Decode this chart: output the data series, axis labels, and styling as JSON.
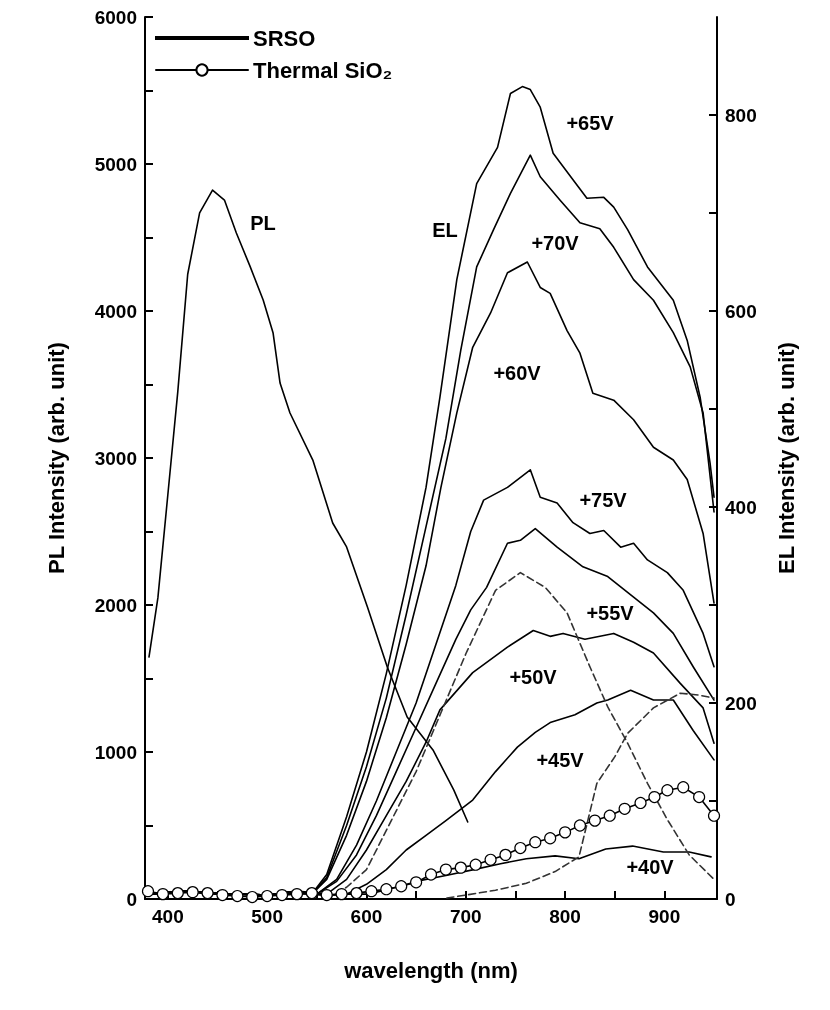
{
  "chart_data": {
    "type": "line",
    "xlabel": "wavelength (nm)",
    "ylabel": "PL Intensity (arb. unit)",
    "y2label": "EL Intensity (arb. unit)",
    "xlim": [
      377,
      953
    ],
    "xticks": [
      400,
      {
        "value": 450,
        "label": null
      },
      500,
      {
        "value": 550,
        "label": null
      },
      600,
      {
        "value": 650,
        "label": null
      },
      700,
      {
        "value": 750,
        "label": null
      },
      800,
      {
        "value": 850,
        "label": null
      },
      900
    ],
    "ylim": [
      0,
      6000
    ],
    "yticks": [
      0,
      {
        "value": 500,
        "label": null
      },
      1000,
      {
        "value": 1500,
        "label": null
      },
      2000,
      {
        "value": 2500,
        "label": null
      },
      3000,
      {
        "value": 3500,
        "label": null
      },
      4000,
      {
        "value": 4500,
        "label": null
      },
      5000,
      {
        "value": 5500,
        "label": null
      },
      6000
    ],
    "y2lim": [
      0,
      900
    ],
    "y2ticks": [
      0,
      {
        "value": 100,
        "label": null
      },
      200,
      {
        "value": 300,
        "label": null
      },
      400,
      {
        "value": 500,
        "label": null
      },
      600,
      {
        "value": 700,
        "label": null
      },
      800
    ],
    "legend": "top left",
    "annotations": [
      "PL",
      "EL"
    ],
    "series": [
      {
        "name": "SRSO",
        "color": "#000000",
        "marker": "none",
        "line_style": "solid",
        "x": [
          381,
          390,
          400,
          410,
          420,
          432,
          445,
          457,
          469,
          483,
          496,
          506,
          513,
          523,
          546,
          566,
          580,
          601,
          621,
          641,
          667,
          688,
          702
        ],
        "values": [
          1646,
          2050,
          2750,
          3450,
          4250,
          4667,
          4823,
          4755,
          4531,
          4300,
          4075,
          3850,
          3510,
          3306,
          2986,
          2558,
          2395,
          1986,
          1578,
          1238,
          1014,
          741,
          524
        ]
      },
      {
        "name": "+65V",
        "color": "#000000",
        "marker": "none",
        "line_style": "solid",
        "axis": "y2",
        "x": [
          380,
          420,
          440,
          500,
          530,
          545,
          560,
          580,
          600,
          620,
          640,
          660,
          674,
          691,
          711,
          732,
          745,
          757,
          765,
          775,
          788,
          808,
          822,
          839,
          849,
          863,
          883,
          909,
          923,
          936,
          946,
          950
        ],
        "values": [
          5,
          8,
          6,
          4,
          8,
          5,
          25,
          84,
          150,
          230,
          320,
          420,
          512,
          632,
          730,
          767,
          822,
          829,
          826,
          808,
          761,
          734,
          715,
          716,
          706,
          683,
          645,
          611,
          570,
          512,
          445,
          410
        ]
      },
      {
        "name": "+70V",
        "color": "#000000",
        "marker": "none",
        "line_style": "solid",
        "axis": "y2",
        "x": [
          380,
          420,
          440,
          500,
          530,
          545,
          560,
          580,
          600,
          620,
          640,
          660,
          680,
          695,
          711,
          728,
          745,
          765,
          775,
          795,
          815,
          835,
          849,
          869,
          889,
          909,
          926,
          939,
          950
        ],
        "values": [
          5,
          8,
          6,
          4,
          8,
          5,
          22,
          75,
          135,
          205,
          290,
          380,
          470,
          560,
          645,
          683,
          720,
          759,
          737,
          713,
          690,
          684,
          665,
          632,
          611,
          578,
          543,
          496,
          395
        ]
      },
      {
        "name": "+60V",
        "color": "#000000",
        "marker": "none",
        "line_style": "solid",
        "axis": "y2",
        "x": [
          380,
          420,
          440,
          500,
          530,
          545,
          560,
          580,
          600,
          620,
          640,
          660,
          675,
          691,
          707,
          725,
          742,
          762,
          775,
          785,
          802,
          815,
          828,
          849,
          869,
          889,
          909,
          923,
          939,
          950
        ],
        "values": [
          5,
          8,
          6,
          4,
          8,
          5,
          20,
          65,
          120,
          185,
          260,
          340,
          420,
          496,
          563,
          598,
          639,
          650,
          624,
          618,
          580,
          557,
          516,
          509,
          489,
          461,
          448,
          428,
          373,
          302
        ]
      },
      {
        "name": "+75V",
        "color": "#000000",
        "marker": "none",
        "line_style": "solid",
        "axis": "y2",
        "x": [
          380,
          420,
          440,
          500,
          530,
          550,
          570,
          590,
          610,
          630,
          650,
          670,
          690,
          705,
          718,
          742,
          765,
          775,
          792,
          808,
          825,
          839,
          856,
          869,
          883,
          903,
          919,
          939,
          950
        ],
        "values": [
          5,
          8,
          6,
          4,
          8,
          5,
          20,
          55,
          100,
          150,
          200,
          260,
          320,
          375,
          407,
          420,
          438,
          410,
          404,
          384,
          373,
          376,
          359,
          363,
          346,
          333,
          315,
          271,
          237
        ]
      },
      {
        "name": "+55V",
        "color": "#000000",
        "marker": "none",
        "line_style": "solid",
        "axis": "y2",
        "x": [
          380,
          420,
          440,
          500,
          530,
          550,
          570,
          590,
          610,
          630,
          650,
          670,
          690,
          705,
          721,
          742,
          755,
          770,
          792,
          818,
          843,
          869,
          889,
          909,
          929,
          950
        ],
        "values": [
          5,
          8,
          6,
          4,
          8,
          5,
          18,
          45,
          85,
          130,
          175,
          220,
          265,
          295,
          318,
          363,
          366,
          378,
          359,
          339,
          329,
          308,
          292,
          271,
          237,
          203
        ]
      },
      {
        "name": "+50V",
        "color": "#000000",
        "marker": "none",
        "line_style": "solid",
        "axis": "y2",
        "x": [
          380,
          420,
          440,
          500,
          530,
          560,
          580,
          600,
          620,
          640,
          660,
          674,
          707,
          742,
          768,
          785,
          798,
          820,
          849,
          869,
          889,
          916,
          939,
          950
        ],
        "values": [
          5,
          8,
          6,
          4,
          8,
          5,
          20,
          50,
          85,
          120,
          160,
          193,
          231,
          257,
          274,
          268,
          271,
          265,
          271,
          262,
          251,
          220,
          195,
          159
        ]
      },
      {
        "name": "+45V",
        "color": "#000000",
        "marker": "none",
        "line_style": "solid",
        "axis": "y2",
        "x": [
          380,
          420,
          440,
          500,
          530,
          560,
          580,
          600,
          620,
          640,
          660,
          680,
          707,
          730,
          752,
          770,
          785,
          810,
          832,
          843,
          866,
          889,
          909,
          929,
          950
        ],
        "values": [
          5,
          8,
          6,
          4,
          6,
          4,
          5,
          15,
          30,
          50,
          65,
          80,
          101,
          130,
          155,
          170,
          180,
          188,
          200,
          203,
          213,
          203,
          203,
          172,
          142
        ]
      },
      {
        "name": "+40V",
        "color": "#000000",
        "marker": "none",
        "line_style": "solid",
        "axis": "y2",
        "x": [
          380,
          420,
          440,
          500,
          530,
          560,
          580,
          602,
          630,
          655,
          680,
          708,
          735,
          761,
          790,
          814,
          841,
          868,
          899,
          925,
          947
        ],
        "values": [
          5,
          8,
          6,
          4,
          6,
          4,
          5,
          5,
          12,
          19,
          24,
          30,
          36,
          41,
          44,
          41,
          51,
          54,
          48,
          48,
          43
        ]
      },
      {
        "color": "#333333",
        "marker": "none",
        "line_style": "dashed",
        "axis": "y2",
        "x": [
          560,
          580,
          600,
          625,
          650,
          675,
          700,
          730,
          755,
          780,
          802,
          825,
          843,
          863,
          883,
          903,
          925,
          950
        ],
        "values": [
          0,
          12,
          30,
          80,
          130,
          190,
          250,
          315,
          333,
          318,
          292,
          237,
          196,
          159,
          118,
          81,
          45,
          20
        ]
      },
      {
        "color": "#333333",
        "marker": "none",
        "line_style": "dashed",
        "axis": "y2",
        "x": [
          681,
          700,
          730,
          761,
          790,
          814,
          832,
          850,
          863,
          889,
          916,
          935,
          950
        ],
        "values": [
          1,
          4,
          9,
          16,
          28,
          43,
          118,
          145,
          169,
          195,
          210,
          208,
          205
        ]
      },
      {
        "name": "Thermal SiO₂",
        "color": "#000000",
        "marker": "circle",
        "line_style": "solid",
        "axis": "y2",
        "x": [
          380,
          395,
          410,
          425,
          440,
          455,
          470,
          485,
          500,
          515,
          530,
          545,
          560,
          575,
          590,
          605,
          620,
          635,
          650,
          665,
          680,
          695,
          710,
          725,
          740,
          755,
          770,
          785,
          800,
          815,
          830,
          845,
          860,
          876,
          890,
          903,
          919,
          935,
          950
        ],
        "values": [
          8,
          5,
          6,
          7,
          6,
          4,
          3,
          2,
          3,
          4,
          5,
          6,
          4,
          5,
          6,
          8,
          10,
          13,
          17,
          25,
          30,
          32,
          35,
          40,
          45,
          52,
          58,
          62,
          68,
          75,
          80,
          85,
          92,
          98,
          104,
          111,
          114,
          104,
          85
        ]
      }
    ]
  }
}
